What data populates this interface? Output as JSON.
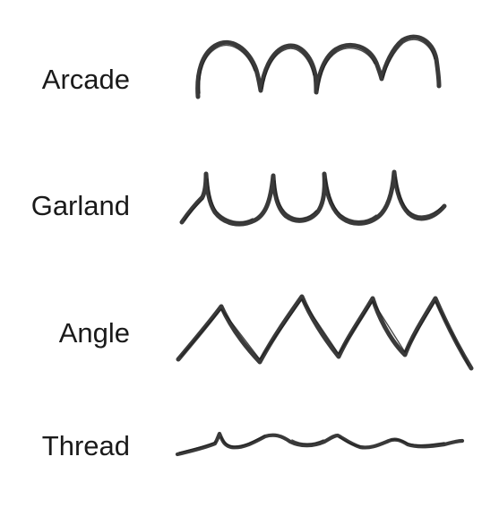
{
  "rows": [
    {
      "label": "Arcade",
      "stroke_icon": "arcade-stroke-icon"
    },
    {
      "label": "Garland",
      "stroke_icon": "garland-stroke-icon"
    },
    {
      "label": "Angle",
      "stroke_icon": "angle-stroke-icon"
    },
    {
      "label": "Thread",
      "stroke_icon": "thread-stroke-icon"
    }
  ],
  "colors": {
    "ink": "#3a3a3a",
    "text": "#1a1a1a",
    "background": "#ffffff"
  }
}
